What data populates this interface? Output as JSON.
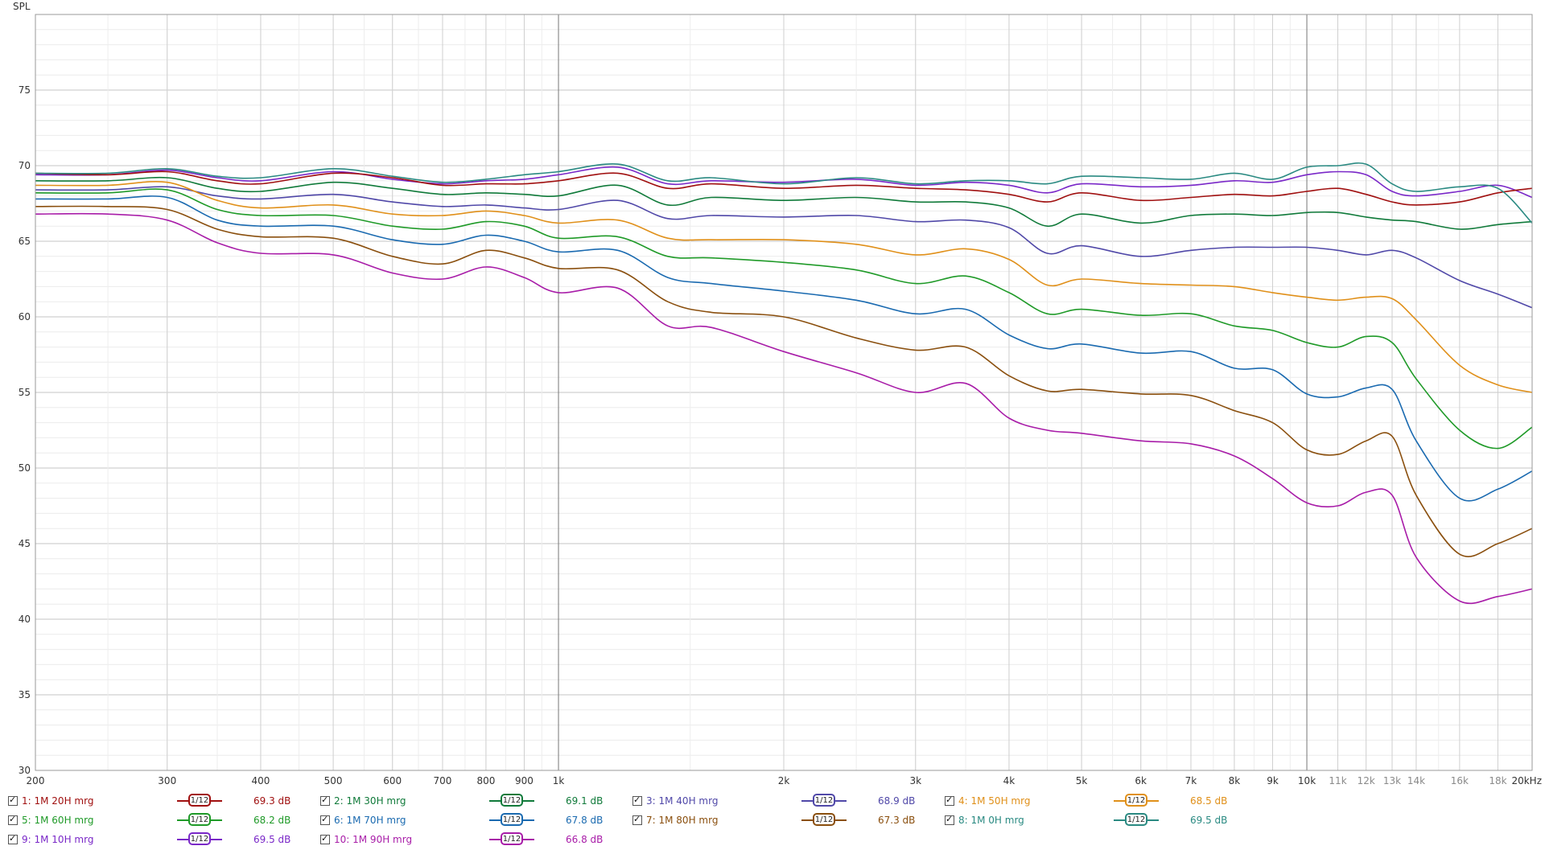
{
  "chart_data": {
    "type": "line",
    "ylabel": "SPL",
    "xscale": "log",
    "xlim": [
      200,
      20000
    ],
    "ylim": [
      30,
      80
    ],
    "grid": true,
    "yticks": [
      30,
      35,
      40,
      45,
      50,
      55,
      60,
      65,
      70,
      75
    ],
    "xticks_major": [
      {
        "v": 200,
        "label": "200"
      },
      {
        "v": 300,
        "label": "300"
      },
      {
        "v": 400,
        "label": "400"
      },
      {
        "v": 500,
        "label": "500"
      },
      {
        "v": 600,
        "label": "600"
      },
      {
        "v": 700,
        "label": "700"
      },
      {
        "v": 800,
        "label": "800"
      },
      {
        "v": 900,
        "label": "900"
      },
      {
        "v": 1000,
        "label": "1k"
      },
      {
        "v": 2000,
        "label": "2k"
      },
      {
        "v": 3000,
        "label": "3k"
      },
      {
        "v": 4000,
        "label": "4k"
      },
      {
        "v": 5000,
        "label": "5k"
      },
      {
        "v": 6000,
        "label": "6k"
      },
      {
        "v": 7000,
        "label": "7k"
      },
      {
        "v": 8000,
        "label": "8k"
      },
      {
        "v": 9000,
        "label": "9k"
      },
      {
        "v": 10000,
        "label": "10k"
      },
      {
        "v": 20000,
        "label": "20kHz"
      }
    ],
    "xticks_minor": [
      {
        "v": 11000,
        "label": "11k"
      },
      {
        "v": 12000,
        "label": "12k"
      },
      {
        "v": 13000,
        "label": "13k"
      },
      {
        "v": 14000,
        "label": "14k"
      },
      {
        "v": 16000,
        "label": "16k"
      },
      {
        "v": 18000,
        "label": "18k"
      }
    ],
    "x": [
      200,
      250,
      300,
      350,
      400,
      500,
      600,
      700,
      800,
      900,
      1000,
      1200,
      1400,
      1600,
      2000,
      2500,
      3000,
      3500,
      4000,
      4500,
      5000,
      6000,
      7000,
      8000,
      9000,
      10000,
      11000,
      12000,
      13000,
      14000,
      16000,
      18000,
      20000
    ],
    "series": [
      {
        "name": "1: 1M 20H mrg",
        "color": "#a01010",
        "values": [
          69.5,
          69.4,
          69.6,
          69.0,
          68.8,
          69.5,
          69.2,
          68.7,
          68.8,
          68.8,
          69.0,
          69.5,
          68.5,
          68.8,
          68.5,
          68.7,
          68.5,
          68.4,
          68.1,
          67.6,
          68.2,
          67.7,
          67.9,
          68.1,
          68.0,
          68.3,
          68.5,
          68.1,
          67.6,
          67.4,
          67.6,
          68.2,
          68.5
        ]
      },
      {
        "name": "2: 1M 30H mrg",
        "color": "#107a3a",
        "values": [
          69.0,
          69.0,
          69.2,
          68.5,
          68.3,
          68.9,
          68.5,
          68.1,
          68.2,
          68.1,
          68.0,
          68.7,
          67.4,
          67.9,
          67.7,
          67.9,
          67.6,
          67.6,
          67.2,
          66.0,
          66.8,
          66.2,
          66.7,
          66.8,
          66.7,
          66.9,
          66.9,
          66.6,
          66.4,
          66.3,
          65.8,
          66.1,
          66.3
        ]
      },
      {
        "name": "3: 1M 40H mrg",
        "color": "#5048a8",
        "values": [
          68.4,
          68.4,
          68.6,
          68.0,
          67.8,
          68.1,
          67.6,
          67.3,
          67.4,
          67.2,
          67.1,
          67.7,
          66.5,
          66.7,
          66.6,
          66.7,
          66.3,
          66.4,
          65.9,
          64.2,
          64.7,
          64.0,
          64.4,
          64.6,
          64.6,
          64.6,
          64.4,
          64.1,
          64.4,
          63.9,
          62.4,
          61.5,
          60.6
        ]
      },
      {
        "name": "4: 1M 50H mrg",
        "color": "#e0901a",
        "values": [
          68.7,
          68.7,
          68.9,
          67.7,
          67.2,
          67.4,
          66.8,
          66.7,
          67.0,
          66.7,
          66.2,
          66.4,
          65.2,
          65.1,
          65.1,
          64.8,
          64.1,
          64.5,
          63.8,
          62.1,
          62.5,
          62.2,
          62.1,
          62.0,
          61.6,
          61.3,
          61.1,
          61.3,
          61.2,
          59.8,
          56.8,
          55.5,
          55.0
        ]
      },
      {
        "name": "5: 1M 60H mrg",
        "color": "#1f9a28",
        "values": [
          68.2,
          68.2,
          68.4,
          67.1,
          66.7,
          66.7,
          66.0,
          65.8,
          66.3,
          66.0,
          65.2,
          65.3,
          64.0,
          63.9,
          63.6,
          63.1,
          62.2,
          62.7,
          61.6,
          60.2,
          60.5,
          60.1,
          60.2,
          59.4,
          59.1,
          58.3,
          58.0,
          58.7,
          58.3,
          55.9,
          52.5,
          51.3,
          52.7
        ]
      },
      {
        "name": "6: 1M 70H mrg",
        "color": "#1a6ab0",
        "values": [
          67.8,
          67.8,
          67.9,
          66.4,
          66.0,
          66.0,
          65.1,
          64.8,
          65.4,
          65.0,
          64.3,
          64.4,
          62.6,
          62.2,
          61.7,
          61.1,
          60.2,
          60.5,
          58.8,
          57.9,
          58.2,
          57.6,
          57.7,
          56.6,
          56.5,
          54.9,
          54.7,
          55.3,
          55.2,
          51.8,
          48.0,
          48.6,
          49.8
        ]
      },
      {
        "name": "7: 1M 80H mrg",
        "color": "#8a4f0e",
        "values": [
          67.3,
          67.3,
          67.1,
          65.8,
          65.3,
          65.2,
          64.0,
          63.5,
          64.4,
          63.9,
          63.2,
          63.1,
          61.0,
          60.3,
          60.0,
          58.6,
          57.8,
          58.0,
          56.1,
          55.1,
          55.2,
          54.9,
          54.8,
          53.8,
          53.0,
          51.2,
          50.9,
          51.8,
          52.1,
          48.2,
          44.3,
          45.0,
          46.0
        ]
      },
      {
        "name": "8: 1M 0H mrg",
        "color": "#2a8a82",
        "values": [
          69.5,
          69.5,
          69.8,
          69.3,
          69.2,
          69.8,
          69.3,
          68.9,
          69.1,
          69.4,
          69.6,
          70.1,
          69.0,
          69.2,
          68.8,
          69.2,
          68.8,
          69.0,
          69.0,
          68.8,
          69.3,
          69.2,
          69.1,
          69.5,
          69.1,
          69.9,
          70.0,
          70.1,
          68.8,
          68.3,
          68.6,
          68.5,
          66.2
        ]
      },
      {
        "name": "9: 1M 10H mrg",
        "color": "#7a28c8",
        "values": [
          69.4,
          69.4,
          69.7,
          69.2,
          69.0,
          69.6,
          69.1,
          68.8,
          69.0,
          69.1,
          69.4,
          69.9,
          68.8,
          69.0,
          68.9,
          69.1,
          68.7,
          68.9,
          68.7,
          68.2,
          68.8,
          68.6,
          68.7,
          69.0,
          68.9,
          69.4,
          69.6,
          69.4,
          68.3,
          68.0,
          68.3,
          68.7,
          67.9
        ]
      },
      {
        "name": "10: 1M 90H mrg",
        "color": "#a81ca8",
        "values": [
          66.8,
          66.8,
          66.4,
          64.9,
          64.2,
          64.1,
          62.9,
          62.5,
          63.3,
          62.6,
          61.6,
          61.9,
          59.4,
          59.3,
          57.7,
          56.3,
          55.0,
          55.6,
          53.3,
          52.5,
          52.3,
          51.8,
          51.6,
          50.8,
          49.3,
          47.7,
          47.5,
          48.4,
          48.2,
          44.1,
          41.2,
          41.5,
          42.0
        ]
      }
    ]
  },
  "legend": [
    {
      "name": "1: 1M 20H mrg",
      "smoothing": "1/12",
      "value": "69.3 dB",
      "color": "#a01010"
    },
    {
      "name": "2: 1M 30H mrg",
      "smoothing": "1/12",
      "value": "69.1 dB",
      "color": "#107a3a"
    },
    {
      "name": "3: 1M 40H mrg",
      "smoothing": "1/12",
      "value": "68.9 dB",
      "color": "#5048a8"
    },
    {
      "name": "4: 1M 50H mrg",
      "smoothing": "1/12",
      "value": "68.5 dB",
      "color": "#e0901a"
    },
    {
      "name": "5: 1M 60H mrg",
      "smoothing": "1/12",
      "value": "68.2 dB",
      "color": "#1f9a28"
    },
    {
      "name": "6: 1M 70H mrg",
      "smoothing": "1/12",
      "value": "67.8 dB",
      "color": "#1a6ab0"
    },
    {
      "name": "7: 1M 80H mrg",
      "smoothing": "1/12",
      "value": "67.3 dB",
      "color": "#8a4f0e"
    },
    {
      "name": "8: 1M 0H mrg",
      "smoothing": "1/12",
      "value": "69.5 dB",
      "color": "#2a8a82"
    },
    {
      "name": "9: 1M 10H mrg",
      "smoothing": "1/12",
      "value": "69.5 dB",
      "color": "#7a28c8"
    },
    {
      "name": "10: 1M 90H mrg",
      "smoothing": "1/12",
      "value": "66.8 dB",
      "color": "#a81ca8"
    }
  ]
}
